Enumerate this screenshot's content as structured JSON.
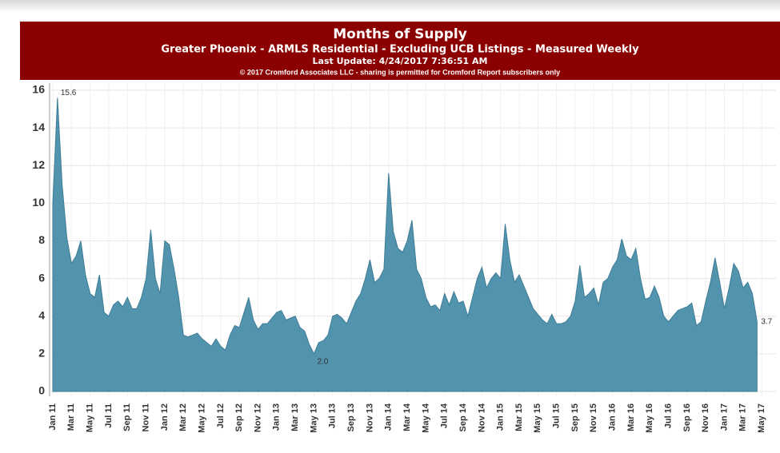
{
  "chart_data": {
    "type": "area",
    "title": "Months of Supply",
    "subtitle": "Greater Phoenix - ARMLS Residential - Excluding UCB Listings - Measured Weekly",
    "update_note": "Last Update: 4/24/2017 7:36:51 AM",
    "copyright": "© 2017 Cromford Associates LLC - sharing is permitted for Cromford Report subscribers only",
    "categories": [
      "Jan 11",
      null,
      null,
      null,
      "Mar 11",
      null,
      null,
      null,
      "May 11",
      null,
      null,
      null,
      "Jul 11",
      null,
      null,
      null,
      "Sep 11",
      null,
      null,
      null,
      "Nov 11",
      null,
      null,
      null,
      "Jan 12",
      null,
      null,
      null,
      "Mar 12",
      null,
      null,
      null,
      "May 12",
      null,
      null,
      null,
      "Jul 12",
      null,
      null,
      null,
      "Sep 12",
      null,
      null,
      null,
      "Nov 12",
      null,
      null,
      null,
      "Jan 13",
      null,
      null,
      null,
      "Mar 13",
      null,
      null,
      null,
      "May 13",
      null,
      null,
      null,
      "Jul 13",
      null,
      null,
      null,
      "Sep 13",
      null,
      null,
      null,
      "Nov 13",
      null,
      null,
      null,
      "Jan 14",
      null,
      null,
      null,
      "Mar 14",
      null,
      null,
      null,
      "May 14",
      null,
      null,
      null,
      "Jul 14",
      null,
      null,
      null,
      "Sep 14",
      null,
      null,
      null,
      "Nov 14",
      null,
      null,
      null,
      "Jan 15",
      null,
      null,
      null,
      "Mar 15",
      null,
      null,
      null,
      "May 15",
      null,
      null,
      null,
      "Jul 15",
      null,
      null,
      null,
      "Sep 15",
      null,
      null,
      null,
      "Nov 15",
      null,
      null,
      null,
      "Jan 16",
      null,
      null,
      null,
      "Mar 16",
      null,
      null,
      null,
      "May 16",
      null,
      null,
      null,
      "Jul 16",
      null,
      null,
      null,
      "Sep 16",
      null,
      null,
      null,
      "Nov 16",
      null,
      null,
      null,
      "Jan 17",
      null,
      null,
      null,
      "Mar 17",
      null,
      null,
      null,
      "May 17",
      null
    ],
    "values": [
      10.0,
      15.6,
      11.0,
      8.2,
      6.8,
      7.2,
      8.0,
      6.2,
      5.2,
      5.0,
      6.2,
      4.2,
      4.0,
      4.6,
      4.8,
      4.5,
      5.0,
      4.4,
      4.4,
      5.0,
      6.0,
      8.6,
      6.0,
      5.2,
      8.0,
      7.8,
      6.5,
      5.0,
      3.0,
      2.9,
      3.0,
      3.1,
      2.8,
      2.6,
      2.4,
      2.8,
      2.4,
      2.2,
      3.0,
      3.5,
      3.4,
      4.2,
      5.0,
      3.8,
      3.3,
      3.6,
      3.6,
      3.9,
      4.2,
      4.3,
      3.8,
      3.9,
      4.0,
      3.4,
      3.2,
      2.5,
      2.0,
      2.6,
      2.7,
      3.0,
      4.0,
      4.1,
      3.9,
      3.6,
      4.2,
      4.8,
      5.2,
      6.0,
      7.0,
      5.8,
      6.0,
      6.5,
      11.6,
      8.5,
      7.6,
      7.4,
      8.0,
      9.1,
      6.5,
      6.0,
      5.0,
      4.5,
      4.6,
      4.3,
      5.2,
      4.6,
      5.3,
      4.7,
      4.8,
      4.0,
      5.0,
      6.0,
      6.6,
      5.5,
      6.0,
      6.3,
      6.0,
      8.9,
      7.0,
      5.8,
      6.2,
      5.6,
      5.0,
      4.4,
      4.1,
      3.8,
      3.6,
      4.1,
      3.6,
      3.6,
      3.7,
      4.0,
      4.8,
      6.7,
      5.0,
      5.2,
      5.5,
      4.6,
      5.8,
      6.0,
      6.6,
      7.0,
      8.1,
      7.2,
      7.0,
      7.6,
      6.0,
      4.9,
      5.0,
      5.6,
      5.0,
      4.0,
      3.7,
      4.0,
      4.3,
      4.4,
      4.5,
      4.7,
      3.5,
      3.7,
      4.8,
      5.8,
      7.1,
      5.8,
      4.4,
      5.5,
      6.8,
      6.4,
      5.5,
      5.8,
      5.2,
      3.7,
      null,
      null
    ],
    "value_labels": [
      null,
      "15.6",
      null,
      null,
      null,
      null,
      null,
      null,
      null,
      null,
      null,
      null,
      null,
      null,
      null,
      null,
      null,
      null,
      null,
      null,
      null,
      null,
      null,
      null,
      null,
      null,
      null,
      null,
      null,
      null,
      null,
      null,
      null,
      null,
      null,
      null,
      null,
      null,
      null,
      null,
      null,
      null,
      null,
      null,
      null,
      null,
      null,
      null,
      null,
      null,
      null,
      null,
      null,
      null,
      null,
      null,
      "2.0",
      null,
      null,
      null,
      null,
      null,
      null,
      null,
      null,
      null,
      null,
      null,
      null,
      null,
      null,
      null,
      null,
      null,
      null,
      null,
      null,
      null,
      null,
      null,
      null,
      null,
      null,
      null,
      null,
      null,
      null,
      null,
      null,
      null,
      null,
      null,
      null,
      null,
      null,
      null,
      null,
      null,
      null,
      null,
      null,
      null,
      null,
      null,
      null,
      null,
      null,
      null,
      null,
      null,
      null,
      null,
      null,
      null,
      null,
      null,
      null,
      null,
      null,
      null,
      null,
      null,
      null,
      null,
      null,
      null,
      null,
      null,
      null,
      null,
      null,
      null,
      null,
      null,
      null,
      null,
      null,
      null,
      null,
      null,
      null,
      null,
      null,
      null,
      null,
      null,
      null,
      null,
      null,
      null,
      null,
      "3.7",
      null,
      null
    ],
    "color": "#5293ad",
    "ylim": [
      0,
      16
    ],
    "yticks": [
      0,
      2,
      4,
      6,
      8,
      10,
      12,
      14,
      16
    ],
    "grid": true
  }
}
